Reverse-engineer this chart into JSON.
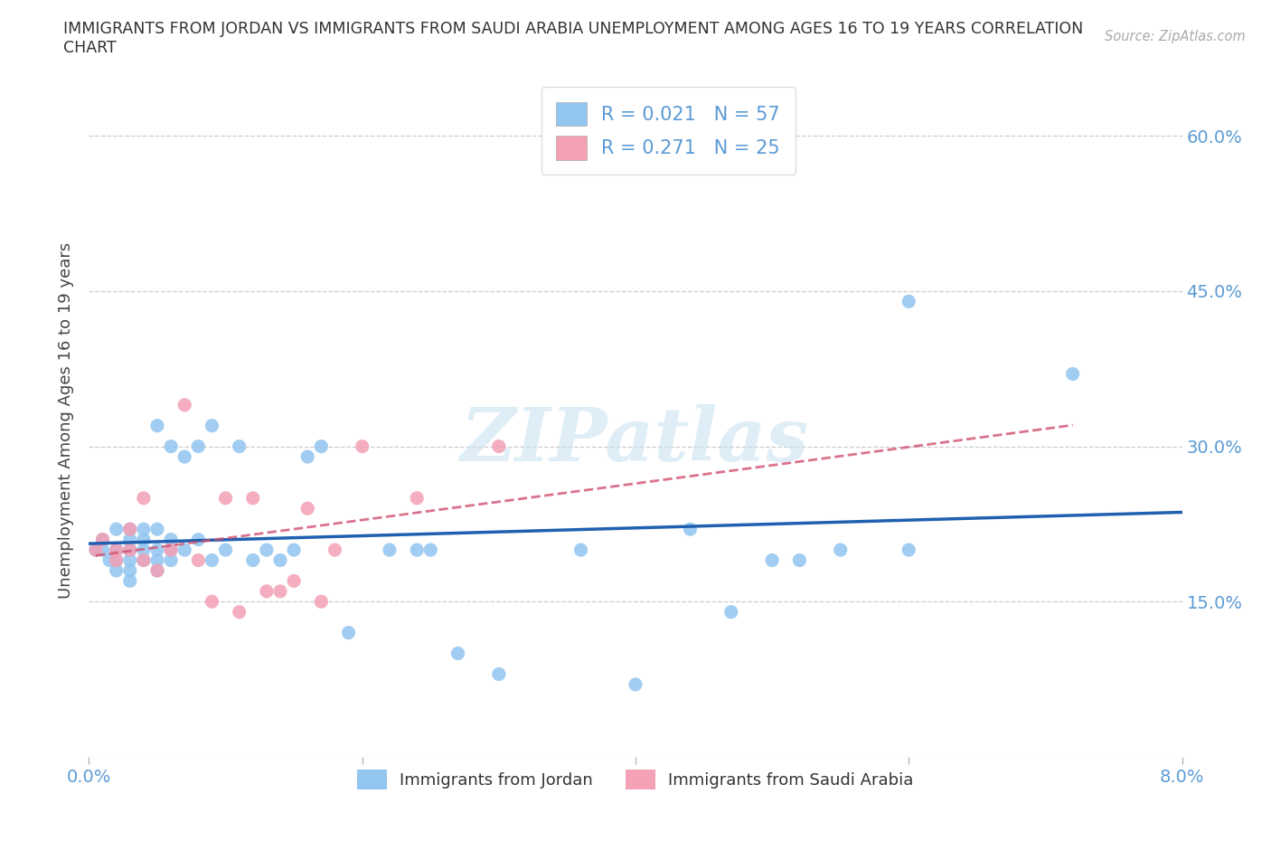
{
  "title_line1": "IMMIGRANTS FROM JORDAN VS IMMIGRANTS FROM SAUDI ARABIA UNEMPLOYMENT AMONG AGES 16 TO 19 YEARS CORRELATION",
  "title_line2": "CHART",
  "source": "Source: ZipAtlas.com",
  "ylabel": "Unemployment Among Ages 16 to 19 years",
  "xlim": [
    0.0,
    0.08
  ],
  "ylim": [
    0.0,
    0.65
  ],
  "color_jordan": "#92C5F0",
  "color_saudi": "#F4A0B5",
  "line_jordan": "#2060B0",
  "line_saudi": "#D05070",
  "tick_color": "#5B9BD5",
  "legend_color": "#5B9BD5",
  "jordan_x": [
    0.0005,
    0.001,
    0.001,
    0.0015,
    0.002,
    0.002,
    0.002,
    0.002,
    0.003,
    0.003,
    0.003,
    0.003,
    0.003,
    0.003,
    0.004,
    0.004,
    0.004,
    0.004,
    0.005,
    0.005,
    0.005,
    0.005,
    0.005,
    0.006,
    0.006,
    0.006,
    0.006,
    0.007,
    0.007,
    0.008,
    0.008,
    0.009,
    0.009,
    0.01,
    0.011,
    0.012,
    0.013,
    0.014,
    0.015,
    0.016,
    0.017,
    0.019,
    0.022,
    0.024,
    0.025,
    0.027,
    0.03,
    0.036,
    0.04,
    0.044,
    0.047,
    0.05,
    0.052,
    0.055,
    0.06,
    0.06,
    0.072
  ],
  "jordan_y": [
    0.2,
    0.2,
    0.21,
    0.19,
    0.18,
    0.19,
    0.2,
    0.22,
    0.17,
    0.18,
    0.19,
    0.2,
    0.21,
    0.22,
    0.19,
    0.2,
    0.21,
    0.22,
    0.18,
    0.19,
    0.2,
    0.22,
    0.32,
    0.19,
    0.2,
    0.21,
    0.3,
    0.2,
    0.29,
    0.21,
    0.3,
    0.19,
    0.32,
    0.2,
    0.3,
    0.19,
    0.2,
    0.19,
    0.2,
    0.29,
    0.3,
    0.12,
    0.2,
    0.2,
    0.2,
    0.1,
    0.08,
    0.2,
    0.07,
    0.22,
    0.14,
    0.19,
    0.19,
    0.2,
    0.44,
    0.2,
    0.37
  ],
  "saudi_x": [
    0.0005,
    0.001,
    0.002,
    0.002,
    0.003,
    0.003,
    0.004,
    0.004,
    0.005,
    0.006,
    0.007,
    0.008,
    0.009,
    0.01,
    0.011,
    0.012,
    0.013,
    0.014,
    0.015,
    0.016,
    0.017,
    0.018,
    0.02,
    0.024,
    0.03
  ],
  "saudi_y": [
    0.2,
    0.21,
    0.19,
    0.2,
    0.2,
    0.22,
    0.19,
    0.25,
    0.18,
    0.2,
    0.34,
    0.19,
    0.15,
    0.25,
    0.14,
    0.25,
    0.16,
    0.16,
    0.17,
    0.24,
    0.15,
    0.2,
    0.3,
    0.25,
    0.3
  ],
  "R_jordan": "0.021",
  "N_jordan": "57",
  "R_saudi": "0.271",
  "N_saudi": "25"
}
